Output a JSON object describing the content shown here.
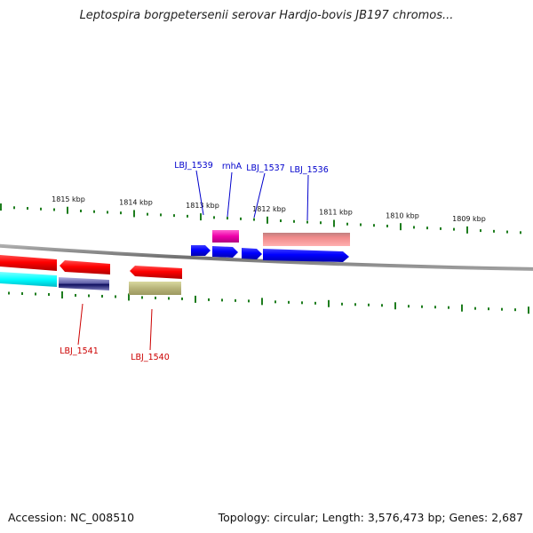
{
  "title": "Leptospira borgpetersenii serovar Hardjo-bovis JB197 chromos...",
  "footer": {
    "accession": "Accession: NC_008510",
    "summary": "Topology: circular; Length: 3,576,473 bp; Genes: 2,687"
  },
  "colors": {
    "backbone": "#8a8a8a",
    "tick": "#1e7d1e",
    "label_forward": "#0000cc",
    "label_reverse": "#cc0000"
  },
  "ruler": {
    "labels": [
      "1815 kbp",
      "1814 kbp",
      "1813 kbp",
      "1812 kbp",
      "1811 kbp",
      "1810 kbp",
      "1809 kbp"
    ]
  },
  "features": [
    {
      "name": "LBJ_1539",
      "strand": "+",
      "color": "#0000ff",
      "label": "LBJ_1539"
    },
    {
      "name": "rnhA",
      "strand": "+",
      "color": "#0000ff",
      "label": "rnhA"
    },
    {
      "name": "LBJ_1537",
      "strand": "+",
      "color": "#0000ff",
      "label": "LBJ_1537"
    },
    {
      "name": "LBJ_1536",
      "strand": "+",
      "color": "#0000ff",
      "label": "LBJ_1536"
    },
    {
      "name": "LBJ_1541",
      "strand": "-",
      "color": "#ff0000",
      "label": "LBJ_1541"
    },
    {
      "name": "LBJ_1540",
      "strand": "-",
      "color": "#ff0000",
      "label": "LBJ_1540"
    }
  ]
}
